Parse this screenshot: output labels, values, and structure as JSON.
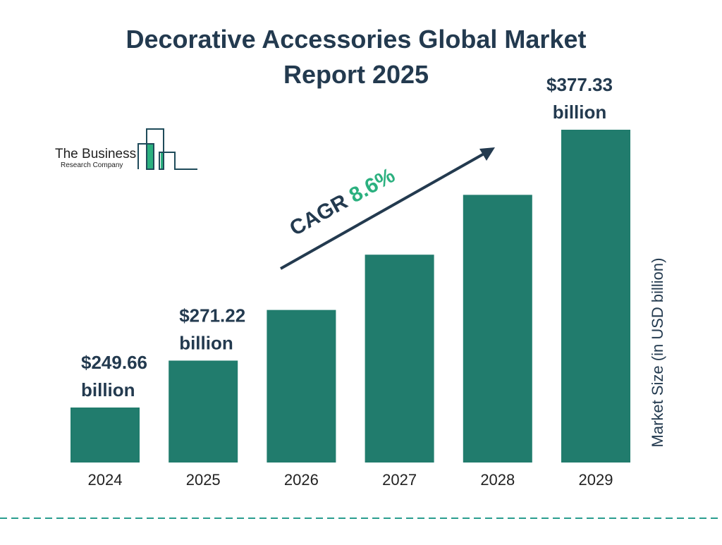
{
  "chart_data": {
    "type": "bar",
    "title": "Decorative Accessories Global Market Report 2025",
    "title_lines": [
      "Decorative Accessories Global Market",
      "Report 2025"
    ],
    "categories": [
      "2024",
      "2025",
      "2026",
      "2027",
      "2028",
      "2029"
    ],
    "values": [
      249.66,
      271.22,
      294.5,
      319.9,
      347.4,
      377.33
    ],
    "data_labels": [
      {
        "index": 0,
        "lines": [
          "$249.66",
          "billion"
        ]
      },
      {
        "index": 1,
        "lines": [
          "$271.22",
          "billion"
        ]
      },
      {
        "index": 5,
        "lines": [
          "$377.33",
          "billion"
        ]
      }
    ],
    "xlabel": "",
    "ylabel": "Market Size (in USD billion)",
    "grid": false,
    "annotation": {
      "prefix": "CAGR ",
      "value": "8.6%"
    },
    "colors": {
      "bar": "#217c6d",
      "text": "#233a4f",
      "cagr": "#2bb07f",
      "dash": "#2a9d8f"
    }
  },
  "logo": {
    "line1": "The Business",
    "line2": "Research Company"
  }
}
